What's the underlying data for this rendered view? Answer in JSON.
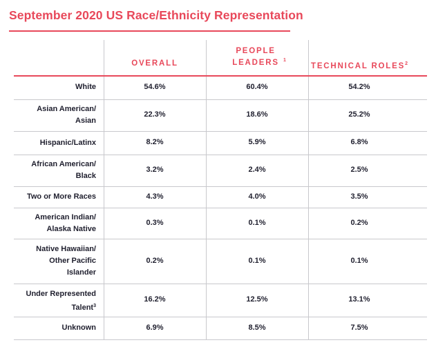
{
  "title": "September 2020 US Race/Ethnicity Representation",
  "columns": [
    {
      "label": "OVERALL",
      "sup": ""
    },
    {
      "label": "PEOPLE LEADERS",
      "sup": "1"
    },
    {
      "label": "TECHNICAL ROLES",
      "sup": "2"
    }
  ],
  "rows": [
    {
      "label": "White",
      "sup": "",
      "values": [
        "54.6%",
        "60.4%",
        "54.2%"
      ]
    },
    {
      "label": "Asian American/ Asian",
      "sup": "",
      "values": [
        "22.3%",
        "18.6%",
        "25.2%"
      ]
    },
    {
      "label": "Hispanic/Latinx",
      "sup": "",
      "values": [
        "8.2%",
        "5.9%",
        "6.8%"
      ]
    },
    {
      "label": "African American/ Black",
      "sup": "",
      "values": [
        "3.2%",
        "2.4%",
        "2.5%"
      ]
    },
    {
      "label": "Two or More Races",
      "sup": "",
      "values": [
        "4.3%",
        "4.0%",
        "3.5%"
      ]
    },
    {
      "label": "American Indian/ Alaska Native",
      "sup": "",
      "values": [
        "0.3%",
        "0.1%",
        "0.2%"
      ]
    },
    {
      "label": "Native Hawaiian/ Other Pacific Islander",
      "sup": "",
      "values": [
        "0.2%",
        "0.1%",
        "0.1%"
      ]
    },
    {
      "label": "Under Represented Talent",
      "sup": "3",
      "values": [
        "16.2%",
        "12.5%",
        "13.1%"
      ]
    },
    {
      "label": "Unknown",
      "sup": "",
      "values": [
        "6.9%",
        "8.5%",
        "7.5%"
      ]
    }
  ]
}
